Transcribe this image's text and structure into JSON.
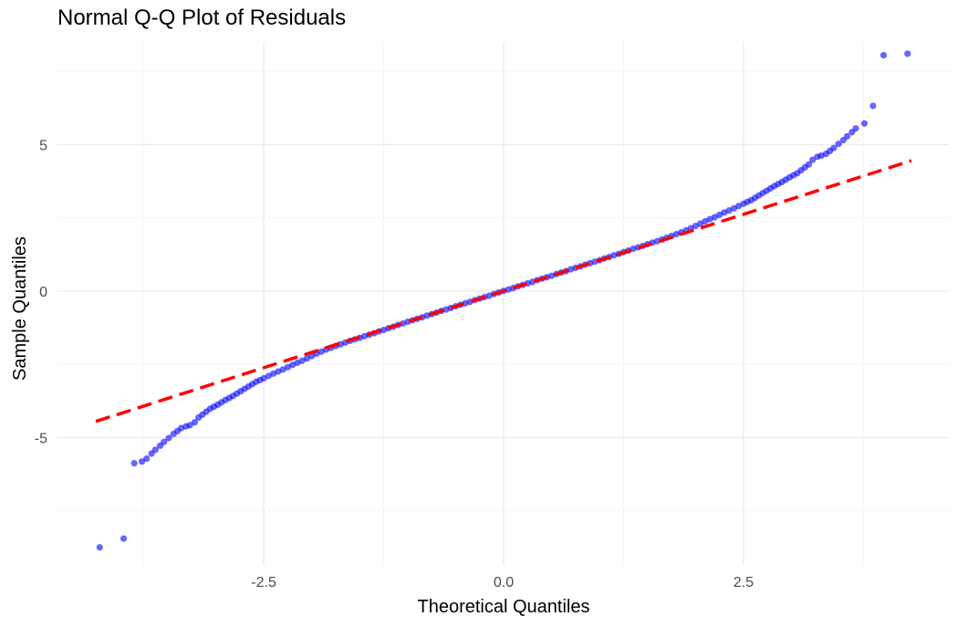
{
  "colors": {
    "background": "#ffffff",
    "grid_major": "#ebebeb",
    "grid_minor": "#f4f4f4",
    "points": "#0000ff",
    "reference_line": "#ff0000"
  },
  "chart_data": {
    "type": "scatter",
    "title": "Normal Q-Q Plot of Residuals",
    "xlabel": "Theoretical Quantiles",
    "ylabel": "Sample Quantiles",
    "xlim": [
      -4.65,
      4.65
    ],
    "ylim": [
      -9.35,
      8.5
    ],
    "x_ticks": [
      -2.5,
      0.0,
      2.5
    ],
    "x_tick_labels": [
      "-2.5",
      "0.0",
      "2.5"
    ],
    "y_ticks": [
      -5,
      0,
      5
    ],
    "y_tick_labels": [
      "-5",
      "0",
      "5"
    ],
    "grid": true,
    "legend": "none",
    "series": [
      {
        "kind": "points",
        "color": "#0000ff",
        "points": [
          [
            -4.21,
            -8.75
          ],
          [
            -3.96,
            -8.45
          ],
          [
            -3.85,
            -5.88
          ],
          [
            -3.77,
            -5.82
          ],
          [
            -3.72,
            -5.72
          ],
          [
            -3.67,
            -5.55
          ],
          [
            -3.63,
            -5.42
          ],
          [
            -3.58,
            -5.28
          ],
          [
            -3.54,
            -5.15
          ],
          [
            -3.49,
            -5.02
          ],
          [
            -3.44,
            -4.88
          ],
          [
            -3.4,
            -4.78
          ],
          [
            -3.36,
            -4.68
          ],
          [
            -3.31,
            -4.62
          ],
          [
            -3.27,
            -4.58
          ],
          [
            -3.22,
            -4.48
          ],
          [
            -3.18,
            -4.32
          ],
          [
            -3.14,
            -4.22
          ],
          [
            -3.1,
            -4.12
          ],
          [
            -3.06,
            -4.02
          ],
          [
            -3.02,
            -3.95
          ],
          [
            -2.98,
            -3.88
          ],
          [
            -2.94,
            -3.8
          ],
          [
            -2.9,
            -3.72
          ],
          [
            -2.86,
            -3.65
          ],
          [
            -2.82,
            -3.58
          ],
          [
            -2.78,
            -3.5
          ],
          [
            -2.74,
            -3.42
          ],
          [
            -2.7,
            -3.34
          ],
          [
            -2.66,
            -3.26
          ],
          [
            -2.62,
            -3.18
          ],
          [
            -2.58,
            -3.1
          ],
          [
            -2.54,
            -3.04
          ],
          [
            -2.5,
            -2.98
          ],
          [
            -2.45,
            -2.9
          ],
          [
            -2.4,
            -2.82
          ],
          [
            -2.35,
            -2.75
          ],
          [
            -2.3,
            -2.68
          ],
          [
            -2.25,
            -2.6
          ],
          [
            -2.2,
            -2.52
          ],
          [
            -2.15,
            -2.45
          ],
          [
            -2.1,
            -2.38
          ],
          [
            -2.05,
            -2.3
          ],
          [
            -2.0,
            -2.22
          ],
          [
            -1.95,
            -2.14
          ],
          [
            -1.9,
            -2.07
          ],
          [
            -1.85,
            -2.0
          ],
          [
            -1.8,
            -1.94
          ],
          [
            -1.75,
            -1.88
          ],
          [
            -1.7,
            -1.82
          ],
          [
            -1.65,
            -1.76
          ],
          [
            -1.6,
            -1.7
          ],
          [
            -1.55,
            -1.65
          ],
          [
            -1.5,
            -1.6
          ],
          [
            -1.45,
            -1.54
          ],
          [
            -1.4,
            -1.49
          ],
          [
            -1.35,
            -1.44
          ],
          [
            -1.3,
            -1.38
          ],
          [
            -1.25,
            -1.33
          ],
          [
            -1.2,
            -1.27
          ],
          [
            -1.15,
            -1.22
          ],
          [
            -1.1,
            -1.16
          ],
          [
            -1.05,
            -1.11
          ],
          [
            -1.0,
            -1.05
          ],
          [
            -0.95,
            -1.0
          ],
          [
            -0.9,
            -0.95
          ],
          [
            -0.85,
            -0.9
          ],
          [
            -0.8,
            -0.84
          ],
          [
            -0.75,
            -0.79
          ],
          [
            -0.7,
            -0.74
          ],
          [
            -0.65,
            -0.68
          ],
          [
            -0.6,
            -0.63
          ],
          [
            -0.55,
            -0.58
          ],
          [
            -0.5,
            -0.52
          ],
          [
            -0.45,
            -0.47
          ],
          [
            -0.4,
            -0.42
          ],
          [
            -0.35,
            -0.37
          ],
          [
            -0.3,
            -0.31
          ],
          [
            -0.25,
            -0.26
          ],
          [
            -0.2,
            -0.21
          ],
          [
            -0.15,
            -0.16
          ],
          [
            -0.1,
            -0.1
          ],
          [
            -0.05,
            -0.05
          ],
          [
            0.0,
            0.0
          ],
          [
            0.05,
            0.05
          ],
          [
            0.1,
            0.1
          ],
          [
            0.15,
            0.16
          ],
          [
            0.2,
            0.21
          ],
          [
            0.25,
            0.26
          ],
          [
            0.3,
            0.31
          ],
          [
            0.35,
            0.37
          ],
          [
            0.4,
            0.42
          ],
          [
            0.45,
            0.47
          ],
          [
            0.5,
            0.52
          ],
          [
            0.55,
            0.58
          ],
          [
            0.6,
            0.63
          ],
          [
            0.65,
            0.68
          ],
          [
            0.7,
            0.74
          ],
          [
            0.75,
            0.79
          ],
          [
            0.8,
            0.84
          ],
          [
            0.85,
            0.9
          ],
          [
            0.9,
            0.95
          ],
          [
            0.95,
            1.0
          ],
          [
            1.0,
            1.05
          ],
          [
            1.05,
            1.11
          ],
          [
            1.1,
            1.16
          ],
          [
            1.15,
            1.22
          ],
          [
            1.2,
            1.27
          ],
          [
            1.25,
            1.33
          ],
          [
            1.3,
            1.38
          ],
          [
            1.35,
            1.44
          ],
          [
            1.4,
            1.49
          ],
          [
            1.45,
            1.54
          ],
          [
            1.5,
            1.6
          ],
          [
            1.55,
            1.65
          ],
          [
            1.6,
            1.7
          ],
          [
            1.65,
            1.76
          ],
          [
            1.7,
            1.82
          ],
          [
            1.75,
            1.88
          ],
          [
            1.8,
            1.94
          ],
          [
            1.85,
            2.0
          ],
          [
            1.9,
            2.07
          ],
          [
            1.95,
            2.14
          ],
          [
            2.0,
            2.22
          ],
          [
            2.05,
            2.3
          ],
          [
            2.1,
            2.38
          ],
          [
            2.15,
            2.45
          ],
          [
            2.2,
            2.52
          ],
          [
            2.25,
            2.6
          ],
          [
            2.3,
            2.68
          ],
          [
            2.35,
            2.75
          ],
          [
            2.4,
            2.82
          ],
          [
            2.45,
            2.9
          ],
          [
            2.5,
            2.98
          ],
          [
            2.54,
            3.04
          ],
          [
            2.58,
            3.1
          ],
          [
            2.62,
            3.18
          ],
          [
            2.66,
            3.26
          ],
          [
            2.7,
            3.34
          ],
          [
            2.74,
            3.42
          ],
          [
            2.78,
            3.5
          ],
          [
            2.82,
            3.58
          ],
          [
            2.86,
            3.65
          ],
          [
            2.9,
            3.72
          ],
          [
            2.94,
            3.8
          ],
          [
            2.98,
            3.88
          ],
          [
            3.02,
            3.95
          ],
          [
            3.06,
            4.02
          ],
          [
            3.1,
            4.12
          ],
          [
            3.14,
            4.22
          ],
          [
            3.18,
            4.32
          ],
          [
            3.22,
            4.48
          ],
          [
            3.27,
            4.58
          ],
          [
            3.31,
            4.62
          ],
          [
            3.36,
            4.68
          ],
          [
            3.4,
            4.78
          ],
          [
            3.44,
            4.88
          ],
          [
            3.49,
            5.02
          ],
          [
            3.54,
            5.15
          ],
          [
            3.58,
            5.28
          ],
          [
            3.63,
            5.42
          ],
          [
            3.67,
            5.55
          ],
          [
            3.76,
            5.72
          ],
          [
            3.85,
            6.32
          ],
          [
            3.96,
            8.05
          ],
          [
            4.21,
            8.1
          ]
        ]
      },
      {
        "kind": "dashed-line",
        "color": "#ff0000",
        "points": [
          [
            -4.25,
            -4.45
          ],
          [
            4.25,
            4.45
          ]
        ]
      }
    ]
  }
}
